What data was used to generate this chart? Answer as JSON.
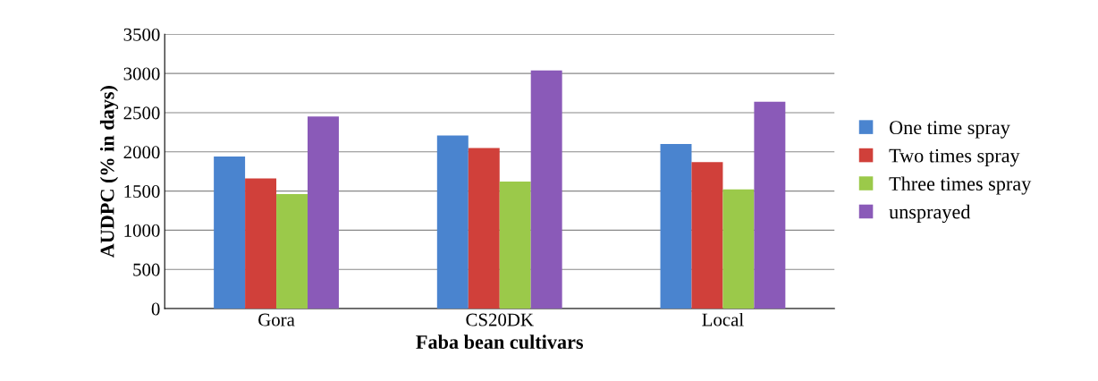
{
  "chart_data": {
    "type": "bar",
    "xlabel": "Faba bean cultivars",
    "ylabel": "AUDPC (% in days)",
    "categories": [
      "Gora",
      "CS20DK",
      "Local"
    ],
    "series": [
      {
        "name": "One time spray",
        "color": "#4a84cf",
        "values": [
          1940,
          2210,
          2100
        ]
      },
      {
        "name": "Two times spray",
        "color": "#d0403a",
        "values": [
          1660,
          2050,
          1870
        ]
      },
      {
        "name": "Three times spray",
        "color": "#9bc94a",
        "values": [
          1460,
          1620,
          1520
        ]
      },
      {
        "name": "unsprayed",
        "color": "#8a5ab8",
        "values": [
          2450,
          3040,
          2640
        ]
      }
    ],
    "ylim": [
      0,
      3500
    ],
    "yticks": [
      0,
      500,
      1000,
      1500,
      2000,
      2500,
      3000,
      3500
    ],
    "grid": "y",
    "legend": "right"
  }
}
